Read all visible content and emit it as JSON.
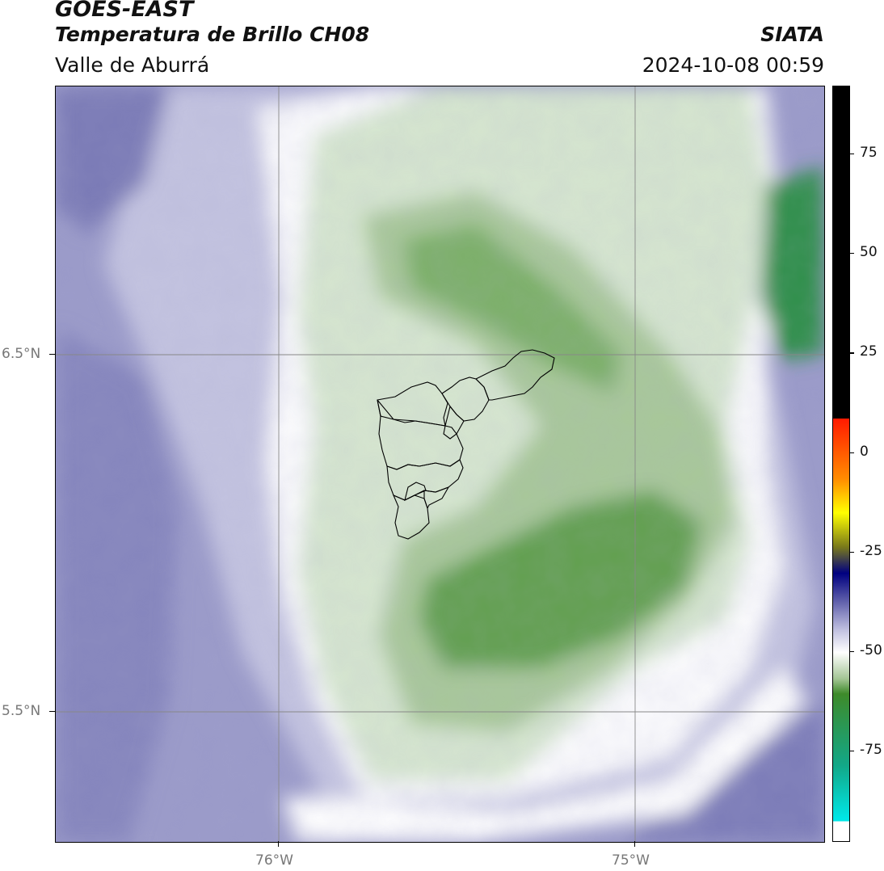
{
  "header": {
    "satellite": "GOES-EAST",
    "product": "Temperatura de Brillo CH08",
    "region": "Valle de Aburrá",
    "agency": "SIATA",
    "datetime": "2024-10-08 00:59"
  },
  "grid": {
    "lat_labels": [
      "6.5°N",
      "5.5°N"
    ],
    "lon_labels": [
      "76°W",
      "75°W"
    ]
  },
  "colorbar": {
    "tick_labels": [
      "75",
      "50",
      "25",
      "0",
      "-25",
      "-50",
      "-75"
    ],
    "colors": {
      "warm_top": "#000000",
      "red": "#ff1a00",
      "orange": "#ff8c00",
      "yellow": "#ffff00",
      "olive": "#7a7a1a",
      "navy": "#000080",
      "purple": "#5a5aa8",
      "white": "#ffffff",
      "green": "#3e8a2a",
      "teal": "#12a888",
      "cyan": "#00e6e6"
    }
  },
  "map": {
    "fill_colors": {
      "cold_purple": "#8b8bc2",
      "light_purple": "#c4c4e0",
      "white": "#ffffff",
      "light_green": "#d9e8d3",
      "mid_green": "#a3c594",
      "dark_green": "#4e8f3a",
      "teal_green": "#2f8f4a"
    },
    "boundaries": "municipal boundaries of Valle de Aburrá"
  }
}
